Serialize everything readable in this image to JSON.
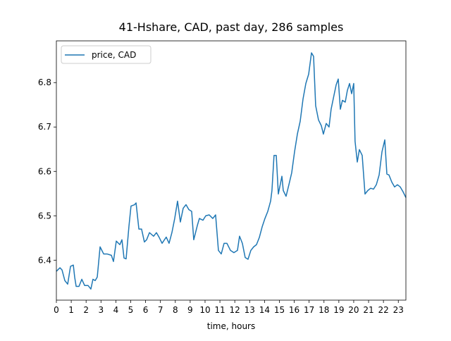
{
  "chart_data": {
    "type": "line",
    "title": "41-Hshare, CAD, past day, 286 samples",
    "x_label": "time, hours",
    "legend": "upper left",
    "x": [
      0,
      0.24,
      0.38,
      0.57,
      0.76,
      0.95,
      1.14,
      1.23,
      1.33,
      1.52,
      1.71,
      1.9,
      2.13,
      2.32,
      2.46,
      2.61,
      2.75,
      2.94,
      3.18,
      3.41,
      3.7,
      3.84,
      4.03,
      4.27,
      4.41,
      4.55,
      4.69,
      4.88,
      5.02,
      5.26,
      5.36,
      5.55,
      5.73,
      5.92,
      6.07,
      6.26,
      6.54,
      6.73,
      6.92,
      7.11,
      7.39,
      7.58,
      7.77,
      7.96,
      8.15,
      8.34,
      8.53,
      8.72,
      8.91,
      9.1,
      9.24,
      9.48,
      9.62,
      9.86,
      10.05,
      10.28,
      10.52,
      10.71,
      10.9,
      11.09,
      11.28,
      11.47,
      11.71,
      11.94,
      12.18,
      12.32,
      12.51,
      12.7,
      12.89,
      13.08,
      13.27,
      13.46,
      13.65,
      13.84,
      14.03,
      14.22,
      14.41,
      14.5,
      14.64,
      14.79,
      14.93,
      15.17,
      15.26,
      15.45,
      15.64,
      15.83,
      16.02,
      16.21,
      16.4,
      16.59,
      16.78,
      16.97,
      17.16,
      17.3,
      17.44,
      17.63,
      17.82,
      17.96,
      18.15,
      18.34,
      18.48,
      18.67,
      18.82,
      18.96,
      19.1,
      19.24,
      19.43,
      19.57,
      19.72,
      19.86,
      20.0,
      20.09,
      20.24,
      20.38,
      20.57,
      20.76,
      20.95,
      21.14,
      21.33,
      21.52,
      21.71,
      21.9,
      22.09,
      22.23,
      22.37,
      22.56,
      22.75,
      22.94,
      23.13,
      23.32,
      23.51
    ],
    "series": [
      {
        "name": "price, CAD",
        "color": "#1f77b4",
        "values": [
          6.375,
          6.383,
          6.378,
          6.354,
          6.346,
          6.386,
          6.389,
          6.362,
          6.341,
          6.341,
          6.357,
          6.343,
          6.343,
          6.335,
          6.357,
          6.354,
          6.362,
          6.43,
          6.414,
          6.414,
          6.411,
          6.397,
          6.443,
          6.435,
          6.446,
          6.405,
          6.403,
          6.476,
          6.522,
          6.525,
          6.529,
          6.47,
          6.47,
          6.441,
          6.446,
          6.462,
          6.454,
          6.462,
          6.451,
          6.438,
          6.452,
          6.438,
          6.462,
          6.494,
          6.533,
          6.486,
          6.517,
          6.525,
          6.514,
          6.51,
          6.446,
          6.478,
          6.494,
          6.49,
          6.5,
          6.502,
          6.494,
          6.502,
          6.422,
          6.414,
          6.438,
          6.438,
          6.422,
          6.417,
          6.422,
          6.454,
          6.438,
          6.406,
          6.402,
          6.422,
          6.43,
          6.435,
          6.451,
          6.475,
          6.494,
          6.51,
          6.533,
          6.557,
          6.636,
          6.636,
          6.549,
          6.589,
          6.557,
          6.544,
          6.57,
          6.597,
          6.644,
          6.684,
          6.713,
          6.763,
          6.798,
          6.819,
          6.867,
          6.859,
          6.748,
          6.716,
          6.703,
          6.684,
          6.708,
          6.7,
          6.74,
          6.771,
          6.795,
          6.808,
          6.74,
          6.76,
          6.756,
          6.782,
          6.798,
          6.775,
          6.798,
          6.668,
          6.621,
          6.649,
          6.636,
          6.549,
          6.557,
          6.562,
          6.56,
          6.57,
          6.592,
          6.644,
          6.671,
          6.594,
          6.592,
          6.576,
          6.565,
          6.57,
          6.565,
          6.554,
          6.541
        ]
      }
    ],
    "xlim": [
      0,
      23.51
    ],
    "ylim": [
      6.31,
      6.894
    ],
    "xticks": [
      0,
      1,
      2,
      3,
      4,
      5,
      6,
      7,
      8,
      9,
      10,
      11,
      12,
      13,
      14,
      15,
      16,
      17,
      18,
      19,
      20,
      21,
      22,
      23
    ],
    "yticks": [
      6.4,
      6.5,
      6.6,
      6.7,
      6.8
    ]
  }
}
